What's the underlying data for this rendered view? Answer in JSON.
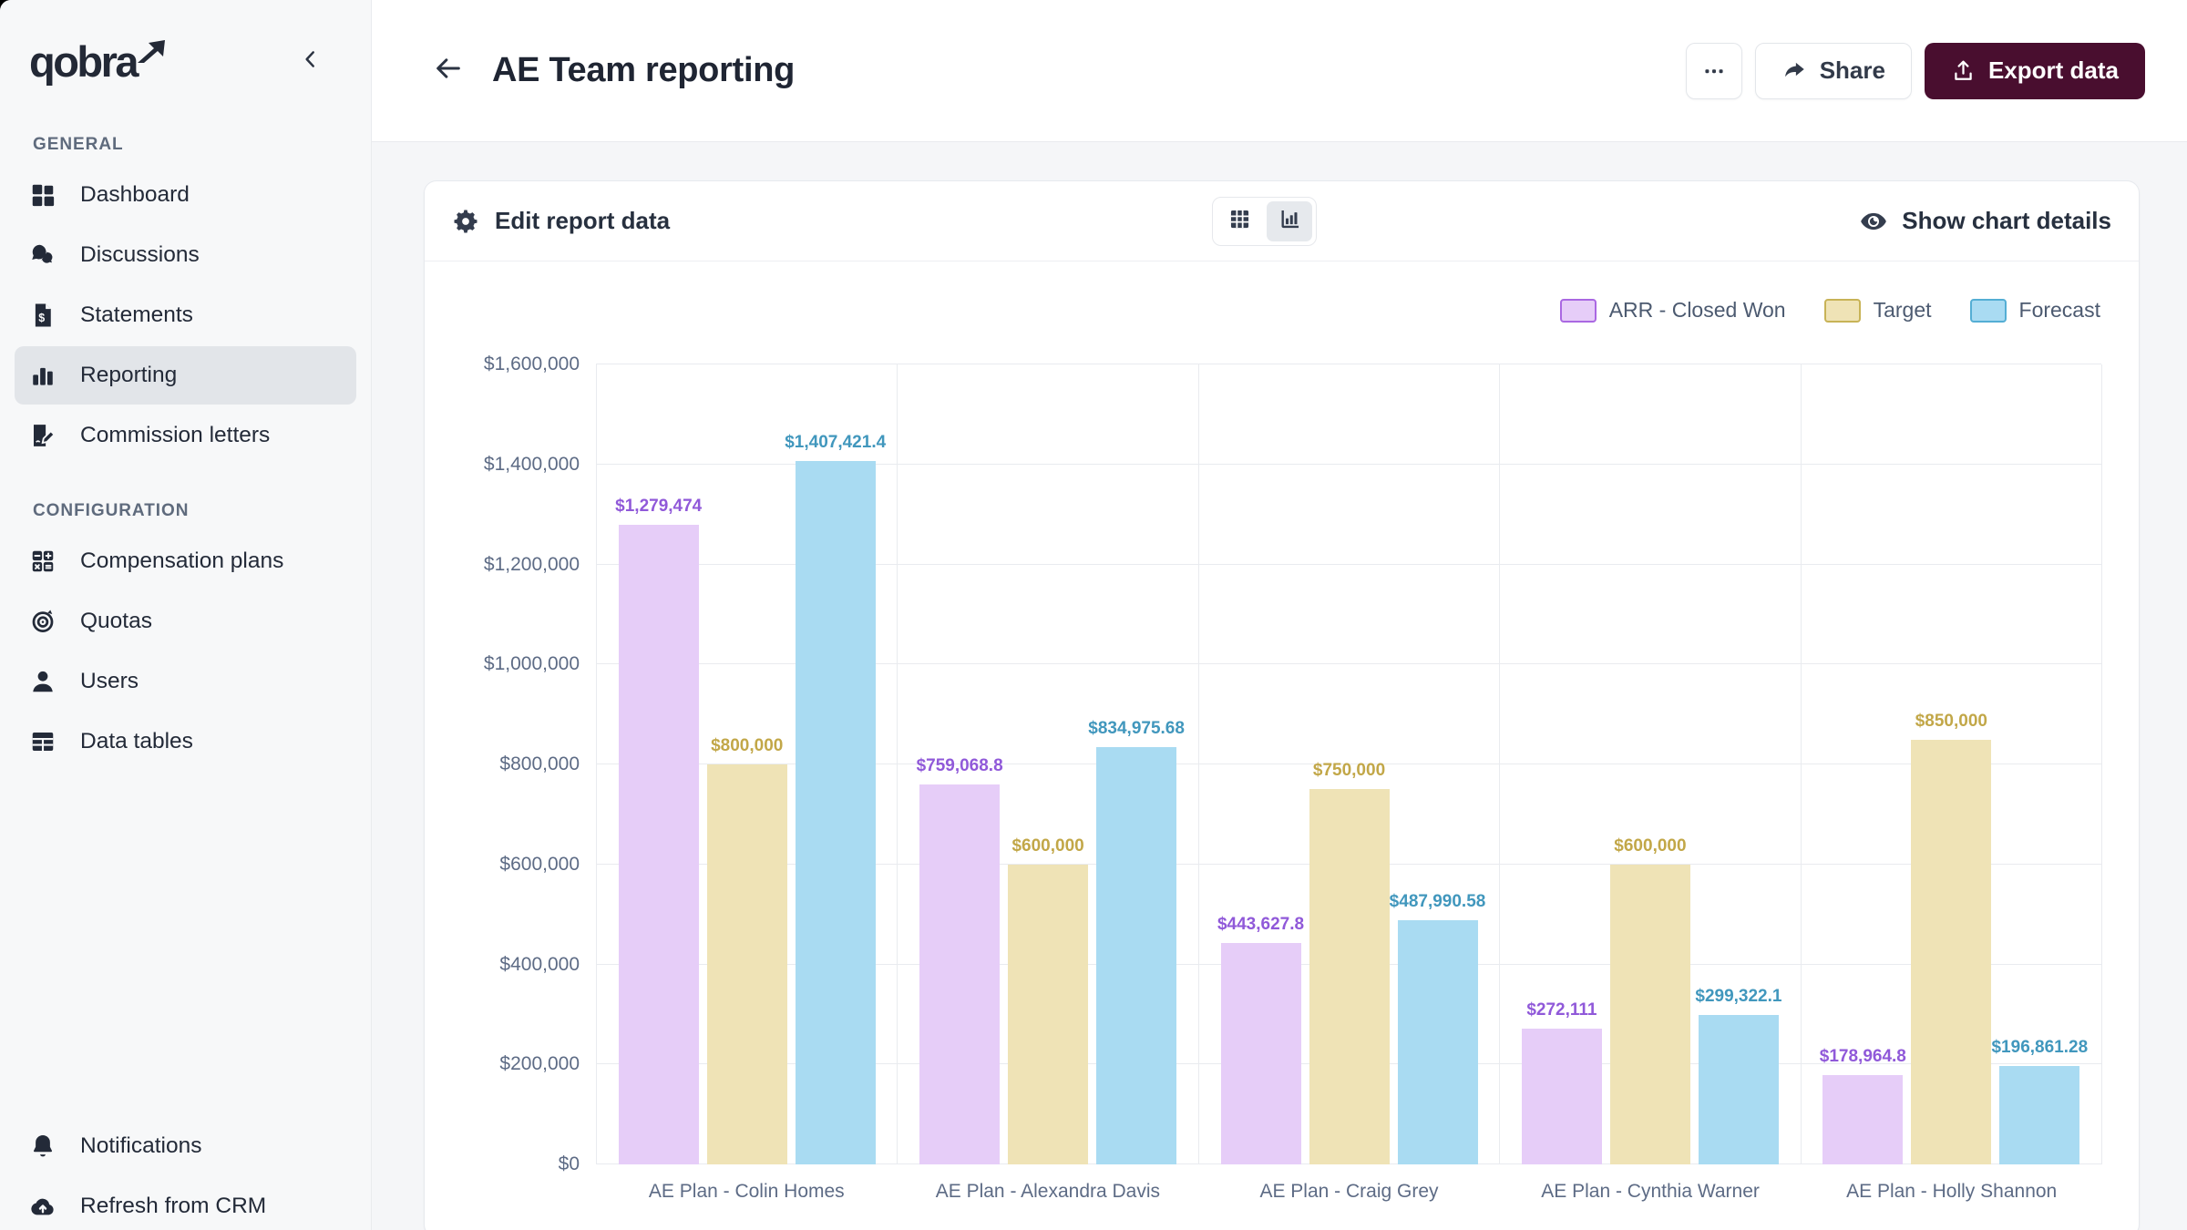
{
  "app": {
    "name": "qobra"
  },
  "sidebar": {
    "logo_text": "qobra",
    "collapse_icon": "chevron-left-icon",
    "sections": [
      {
        "label": "GENERAL",
        "items": [
          {
            "label": "Dashboard",
            "icon": "dashboard-icon",
            "active": false
          },
          {
            "label": "Discussions",
            "icon": "discussions-icon",
            "active": false
          },
          {
            "label": "Statements",
            "icon": "statements-icon",
            "active": false
          },
          {
            "label": "Reporting",
            "icon": "reporting-icon",
            "active": true
          },
          {
            "label": "Commission letters",
            "icon": "commission-letters-icon",
            "active": false
          }
        ]
      },
      {
        "label": "CONFIGURATION",
        "items": [
          {
            "label": "Compensation plans",
            "icon": "compensation-plans-icon",
            "active": false
          },
          {
            "label": "Quotas",
            "icon": "quotas-icon",
            "active": false
          },
          {
            "label": "Users",
            "icon": "users-icon",
            "active": false
          },
          {
            "label": "Data tables",
            "icon": "data-tables-icon",
            "active": false
          }
        ]
      }
    ],
    "footer_items": [
      {
        "label": "Notifications",
        "icon": "notifications-icon",
        "active": false
      },
      {
        "label": "Refresh from CRM",
        "icon": "refresh-crm-icon",
        "active": false
      }
    ]
  },
  "header": {
    "back_icon": "back-arrow-icon",
    "title": "AE Team reporting",
    "more_icon": "more-icon",
    "share": {
      "label": "Share",
      "icon": "share-icon"
    },
    "export": {
      "label": "Export data",
      "icon": "export-icon",
      "color": "#490e2f"
    }
  },
  "report_card": {
    "edit_label": "Edit report data",
    "edit_icon": "gear-icon",
    "view_toggle": {
      "options": [
        "table",
        "chart"
      ],
      "active": "chart",
      "icons": [
        "table-view-icon",
        "chart-view-icon"
      ]
    },
    "show_details_label": "Show chart details",
    "show_details_icon": "eye-icon"
  },
  "chart_data": {
    "type": "bar",
    "categories": [
      "AE Plan - Colin Homes",
      "AE Plan - Alexandra Davis",
      "AE Plan - Craig Grey",
      "AE Plan - Cynthia Warner",
      "AE Plan - Holly Shannon"
    ],
    "series": [
      {
        "name": "ARR - Closed Won",
        "values": [
          1279474,
          759068.8,
          443627.8,
          272111,
          178964.8
        ],
        "labels": [
          "$1,279,474",
          "$759,068.8",
          "$443,627.8",
          "$272,111",
          "$178,964.8"
        ],
        "fill": "#e6cdf8",
        "border": "#aa68e2",
        "label_color": "#9059d9"
      },
      {
        "name": "Target",
        "values": [
          800000,
          600000,
          750000,
          600000,
          850000
        ],
        "labels": [
          "$800,000",
          "$600,000",
          "$750,000",
          "$600,000",
          "$850,000"
        ],
        "fill": "#efe3b6",
        "border": "#c8b357",
        "label_color": "#c2a748"
      },
      {
        "name": "Forecast",
        "values": [
          1407421.4,
          834975.68,
          487990.58,
          299322.1,
          196861.28
        ],
        "labels": [
          "$1,407,421.4",
          "$834,975.68",
          "$487,990.58",
          "$299,322.1",
          "$196,861.28"
        ],
        "fill": "#a9dbf2",
        "border": "#54aed4",
        "label_color": "#4197bd"
      }
    ],
    "ylim": [
      0,
      1600000
    ],
    "ytick_step": 200000,
    "ytick_labels": [
      "$0",
      "$200,000",
      "$400,000",
      "$600,000",
      "$800,000",
      "$1,000,000",
      "$1,200,000",
      "$1,400,000",
      "$1,600,000"
    ],
    "grid": true,
    "legend_position": "top-right",
    "xlabel": "",
    "ylabel": ""
  }
}
